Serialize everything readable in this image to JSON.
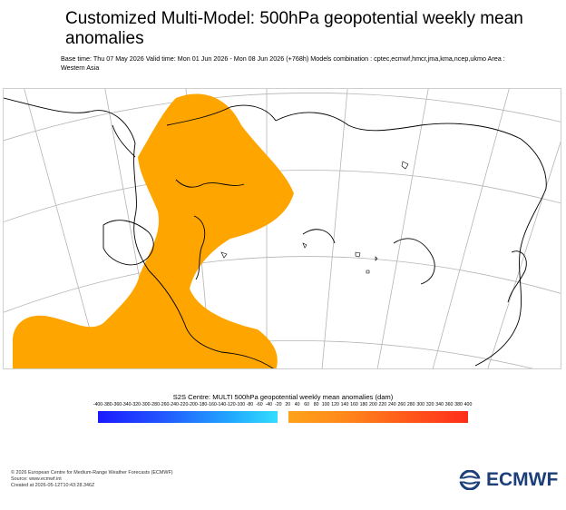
{
  "header": {
    "title": "Customized Multi-Model: 500hPa geopotential weekly mean anomalies",
    "subtitle": "Base time: Thu 07 May 2026 Valid time: Mon 01 Jun 2026 - Mon 08 Jun 2026 (+768h) Models combination : cptec,ecmwf,hmcr,jma,kma,ncep,ukmo Area : Western Asia"
  },
  "legend": {
    "title": "S2S Centre: MULTI 500hPa geopotential weekly mean anomalies (dam)",
    "ticks": [
      "-400",
      "-380",
      "-360",
      "-340",
      "-320",
      "-300",
      "-280",
      "-260",
      "-240",
      "-220",
      "-200",
      "-180",
      "-160",
      "-140",
      "-120",
      "-100",
      "-80",
      "-60",
      "-40",
      "-20",
      "20",
      "40",
      "60",
      "80",
      "100",
      "120",
      "140",
      "160",
      "180",
      "200",
      "220",
      "240",
      "260",
      "280",
      "300",
      "320",
      "340",
      "360",
      "380",
      "400"
    ],
    "negative_color_start": "#1a1aff",
    "negative_color_end": "#33ddff",
    "positive_color_start": "#ffa21a",
    "positive_color_end": "#ff2d1a"
  },
  "map": {
    "anomaly_fill_color": "#ffa500",
    "coastline_color": "#000000",
    "graticule_color": "#b4b4b4"
  },
  "footer": {
    "copyright": "© 2026 European Centre for Medium-Range Weather Forecasts (ECMWF)",
    "source": "Source: www.ecmwf.int",
    "created": "Created at 2026-05-12T10:43:28.346Z"
  },
  "logo": {
    "text": "ECMWF"
  }
}
